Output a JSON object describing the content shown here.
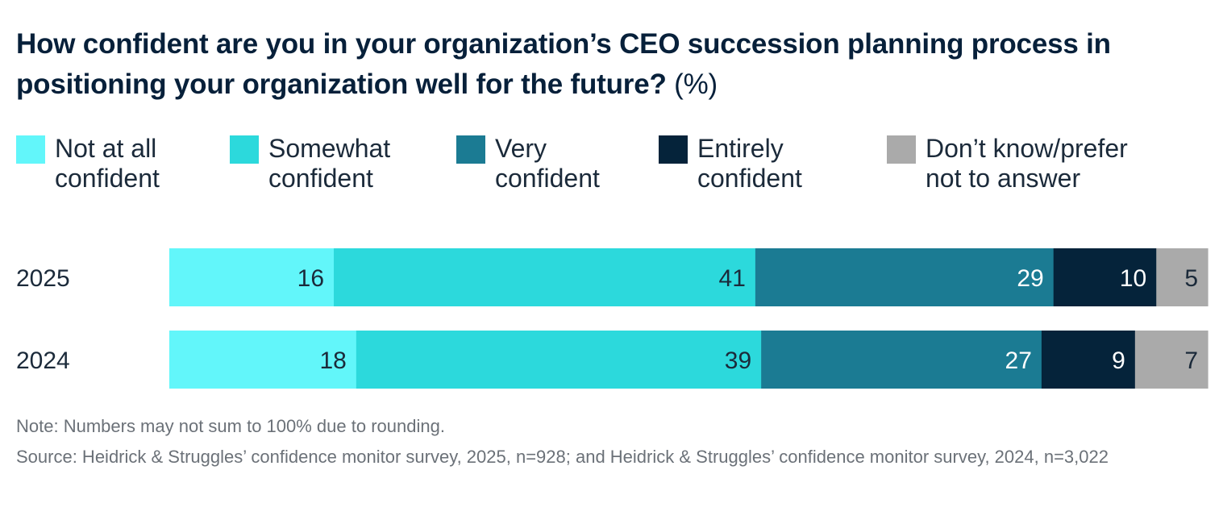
{
  "chart_data": {
    "type": "bar",
    "orientation": "horizontal",
    "stacked": true,
    "title": "How confident are you in your organization’s CEO succession planning process in positioning your organization well for the future?",
    "title_unit": "(%)",
    "legend_position": "top",
    "categories": [
      "2025",
      "2024"
    ],
    "series": [
      {
        "name_line1": "Not at all",
        "name_line2": "confident",
        "color": "#62F6FA",
        "label_color": "#1b2a3a",
        "values": [
          16,
          18
        ]
      },
      {
        "name_line1": "Somewhat",
        "name_line2": "confident",
        "color": "#2CD9DC",
        "label_color": "#1b2a3a",
        "values": [
          41,
          39
        ]
      },
      {
        "name_line1": "Very",
        "name_line2": "confident",
        "color": "#1B7B93",
        "label_color": "#ffffff",
        "values": [
          29,
          27
        ]
      },
      {
        "name_line1": "Entirely",
        "name_line2": "confident",
        "color": "#05233A",
        "label_color": "#ffffff",
        "values": [
          10,
          9
        ]
      },
      {
        "name_line1": "Don’t know/prefer",
        "name_line2": "not to answer",
        "color": "#AAAAAA",
        "label_color": "#1b2a3a",
        "values": [
          5,
          7
        ]
      }
    ]
  },
  "footer": {
    "note": "Note: Numbers may not sum to 100% due to rounding.",
    "source": "Source: Heidrick & Struggles’ confidence monitor survey, 2025, n=928; and Heidrick & Struggles’ confidence monitor survey, 2024, n=3,022"
  }
}
